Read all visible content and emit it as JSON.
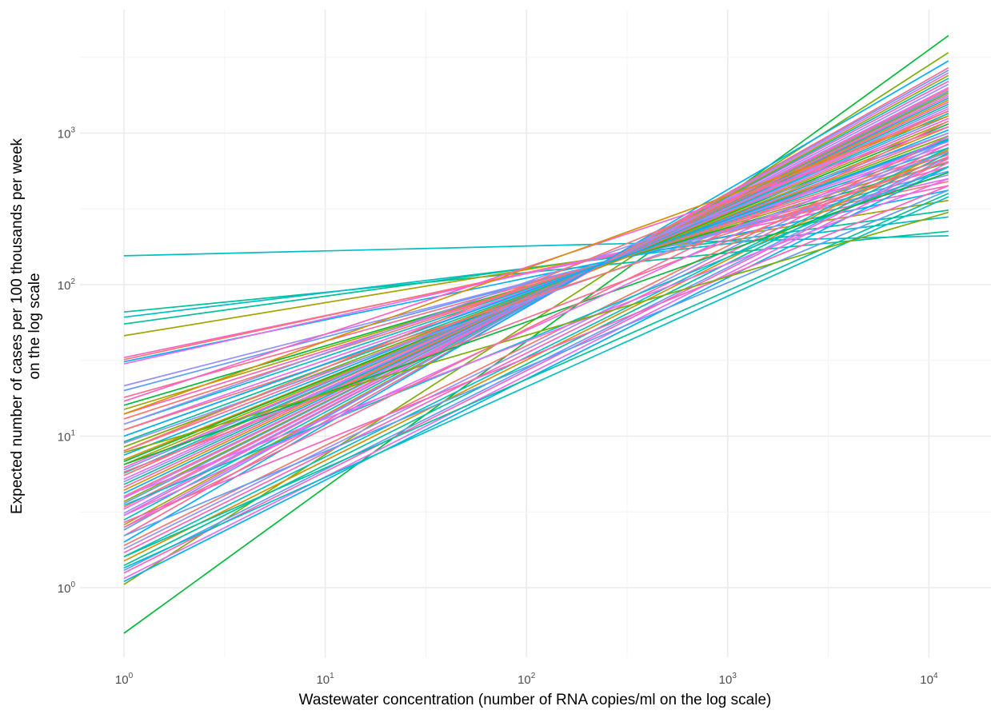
{
  "chart_data": {
    "type": "line",
    "title": "",
    "xlabel": "Wastewater concentration (number of RNA copies/ml on the log scale)",
    "ylabel_lines": [
      "Expected number of cases per 100 thousands per week",
      "on the log scale"
    ],
    "x_scale": "log10",
    "y_scale": "log10",
    "xlim": [
      1,
      12500
    ],
    "ylim": [
      0.35,
      5500
    ],
    "grid": true,
    "legend": "none",
    "x_ticks": [
      {
        "base": "10",
        "exp": "0",
        "value": 1
      },
      {
        "base": "10",
        "exp": "1",
        "value": 10
      },
      {
        "base": "10",
        "exp": "2",
        "value": 100
      },
      {
        "base": "10",
        "exp": "3",
        "value": 1000
      },
      {
        "base": "10",
        "exp": "4",
        "value": 10000
      }
    ],
    "y_ticks": [
      {
        "base": "10",
        "exp": "0",
        "value": 1
      },
      {
        "base": "10",
        "exp": "1",
        "value": 10
      },
      {
        "base": "10",
        "exp": "2",
        "value": 100
      },
      {
        "base": "10",
        "exp": "3",
        "value": 1000
      }
    ],
    "series": [
      {
        "color": "#00BA38",
        "x": [
          1,
          12500
        ],
        "y": [
          0.5,
          4400
        ]
      },
      {
        "color": "#7CAE00",
        "x": [
          1,
          12500
        ],
        "y": [
          1.05,
          3400
        ]
      },
      {
        "color": "#00BFC4",
        "x": [
          1,
          12500
        ],
        "y": [
          155,
          210
        ]
      },
      {
        "color": "#00C19A",
        "x": [
          1,
          12500
        ],
        "y": [
          66,
          225
        ]
      },
      {
        "color": "#00BFC4",
        "x": [
          1,
          12500
        ],
        "y": [
          61,
          280
        ]
      },
      {
        "color": "#00C19A",
        "x": [
          1,
          12500
        ],
        "y": [
          55,
          310
        ]
      },
      {
        "color": "#A3A500",
        "x": [
          1,
          12500
        ],
        "y": [
          46,
          360
        ]
      },
      {
        "color": "#00B0F6",
        "x": [
          1,
          12500
        ],
        "y": [
          31,
          420
        ]
      },
      {
        "color": "#FF61C3",
        "x": [
          1,
          12500
        ],
        "y": [
          33,
          450
        ]
      },
      {
        "color": "#F8766D",
        "x": [
          1,
          12500
        ],
        "y": [
          32,
          480
        ]
      },
      {
        "color": "#E76BF3",
        "x": [
          1,
          12500
        ],
        "y": [
          30,
          500
        ]
      },
      {
        "color": "#9590FF",
        "x": [
          1,
          12500
        ],
        "y": [
          21.5,
          530
        ]
      },
      {
        "color": "#619CFF",
        "x": [
          1,
          12500
        ],
        "y": [
          20,
          560
        ]
      },
      {
        "color": "#FF6C91",
        "x": [
          1,
          12500
        ],
        "y": [
          18,
          600
        ]
      },
      {
        "color": "#00BA38",
        "x": [
          1,
          12500
        ],
        "y": [
          16,
          640
        ]
      },
      {
        "color": "#A3A500",
        "x": [
          1,
          12500
        ],
        "y": [
          15,
          680
        ]
      },
      {
        "color": "#FF62BC",
        "x": [
          1,
          12500
        ],
        "y": [
          14,
          720
        ]
      },
      {
        "color": "#F8766D",
        "x": [
          1,
          12500
        ],
        "y": [
          13,
          760
        ]
      },
      {
        "color": "#00BFC4",
        "x": [
          1,
          12500
        ],
        "y": [
          12,
          800
        ]
      },
      {
        "color": "#E76BF3",
        "x": [
          1,
          12500
        ],
        "y": [
          11,
          840
        ]
      },
      {
        "color": "#9590FF",
        "x": [
          1,
          12500
        ],
        "y": [
          10,
          880
        ]
      },
      {
        "color": "#00C19A",
        "x": [
          1,
          12500
        ],
        "y": [
          9.2,
          920
        ]
      },
      {
        "color": "#7CAE00",
        "x": [
          1,
          12500
        ],
        "y": [
          8.5,
          960
        ]
      },
      {
        "color": "#FF6C91",
        "x": [
          1,
          12500
        ],
        "y": [
          8,
          1000
        ]
      },
      {
        "color": "#00B0F6",
        "x": [
          1,
          12500
        ],
        "y": [
          7.5,
          1050
        ]
      },
      {
        "color": "#D89000",
        "x": [
          1,
          12500
        ],
        "y": [
          7,
          1100
        ]
      },
      {
        "color": "#00BA38",
        "x": [
          1,
          12500
        ],
        "y": [
          6.8,
          1150
        ]
      },
      {
        "color": "#A3A500",
        "x": [
          1,
          12500
        ],
        "y": [
          6.5,
          1200
        ]
      },
      {
        "color": "#FF61C3",
        "x": [
          1,
          12500
        ],
        "y": [
          6.2,
          1250
        ]
      },
      {
        "color": "#619CFF",
        "x": [
          1,
          12500
        ],
        "y": [
          6,
          1300
        ]
      },
      {
        "color": "#00BFC4",
        "x": [
          1,
          12500
        ],
        "y": [
          5.7,
          1350
        ]
      },
      {
        "color": "#F8766D",
        "x": [
          1,
          12500
        ],
        "y": [
          5.5,
          1400
        ]
      },
      {
        "color": "#E76BF3",
        "x": [
          1,
          12500
        ],
        "y": [
          5.2,
          1450
        ]
      },
      {
        "color": "#9590FF",
        "x": [
          1,
          12500
        ],
        "y": [
          5,
          1500
        ]
      },
      {
        "color": "#00C19A",
        "x": [
          1,
          12500
        ],
        "y": [
          4.8,
          1550
        ]
      },
      {
        "color": "#FF62BC",
        "x": [
          1,
          12500
        ],
        "y": [
          4.6,
          1600
        ]
      },
      {
        "color": "#D89000",
        "x": [
          1,
          12500
        ],
        "y": [
          4.4,
          1650
        ]
      },
      {
        "color": "#00B0F6",
        "x": [
          1,
          12500
        ],
        "y": [
          4.2,
          1700
        ]
      },
      {
        "color": "#FF6C91",
        "x": [
          1,
          12500
        ],
        "y": [
          4,
          1750
        ]
      },
      {
        "color": "#C77CFF",
        "x": [
          1,
          12500
        ],
        "y": [
          3.9,
          1800
        ]
      },
      {
        "color": "#7CAE00",
        "x": [
          1,
          12500
        ],
        "y": [
          3.7,
          1850
        ]
      },
      {
        "color": "#619CFF",
        "x": [
          1,
          12500
        ],
        "y": [
          3.6,
          1900
        ]
      },
      {
        "color": "#F8766D",
        "x": [
          1,
          12500
        ],
        "y": [
          3.4,
          1950
        ]
      },
      {
        "color": "#E76BF3",
        "x": [
          1,
          12500
        ],
        "y": [
          3.3,
          2000
        ]
      },
      {
        "color": "#9590FF",
        "x": [
          1,
          12500
        ],
        "y": [
          3.1,
          2100
        ]
      },
      {
        "color": "#FF61C3",
        "x": [
          1,
          12500
        ],
        "y": [
          3,
          2200
        ]
      },
      {
        "color": "#00BFC4",
        "x": [
          1,
          12500
        ],
        "y": [
          2.8,
          2300
        ]
      },
      {
        "color": "#A3A500",
        "x": [
          1,
          12500
        ],
        "y": [
          2.6,
          2400
        ]
      },
      {
        "color": "#E76BF3",
        "x": [
          1,
          12500
        ],
        "y": [
          2.5,
          2500
        ]
      },
      {
        "color": "#619CFF",
        "x": [
          1,
          12500
        ],
        "y": [
          2.4,
          2600
        ]
      },
      {
        "color": "#FF6C91",
        "x": [
          1,
          12500
        ],
        "y": [
          2.2,
          2700
        ]
      },
      {
        "color": "#00B0F6",
        "x": [
          1,
          12500
        ],
        "y": [
          2,
          3000
        ]
      },
      {
        "color": "#F8766D",
        "x": [
          1,
          12500
        ],
        "y": [
          1.9,
          950
        ]
      },
      {
        "color": "#9590FF",
        "x": [
          1,
          12500
        ],
        "y": [
          1.8,
          900
        ]
      },
      {
        "color": "#FF62BC",
        "x": [
          1,
          12500
        ],
        "y": [
          1.7,
          850
        ]
      },
      {
        "color": "#00BFC4",
        "x": [
          1,
          12500
        ],
        "y": [
          1.6,
          800
        ]
      },
      {
        "color": "#D89000",
        "x": [
          1,
          12500
        ],
        "y": [
          1.5,
          780
        ]
      },
      {
        "color": "#00C19A",
        "x": [
          1,
          12500
        ],
        "y": [
          1.4,
          740
        ]
      },
      {
        "color": "#619CFF",
        "x": [
          1,
          12500
        ],
        "y": [
          1.3,
          700
        ]
      },
      {
        "color": "#FF61C3",
        "x": [
          1,
          12500
        ],
        "y": [
          1.25,
          680
        ]
      },
      {
        "color": "#E76BF3",
        "x": [
          1,
          12500
        ],
        "y": [
          1.15,
          640
        ]
      },
      {
        "color": "#00B0F6",
        "x": [
          1,
          12500
        ],
        "y": [
          1.1,
          600
        ]
      },
      {
        "color": "#00BFC4",
        "x": [
          1,
          12500
        ],
        "y": [
          3.5,
          600
        ]
      },
      {
        "color": "#FF6C91",
        "x": [
          1,
          12500
        ],
        "y": [
          5.8,
          700
        ]
      },
      {
        "color": "#9590FF",
        "x": [
          1,
          12500
        ],
        "y": [
          9,
          750
        ]
      },
      {
        "color": "#F8766D",
        "x": [
          1,
          12500
        ],
        "y": [
          11,
          650
        ]
      },
      {
        "color": "#00BA38",
        "x": [
          1,
          12500
        ],
        "y": [
          6.5,
          550
        ]
      },
      {
        "color": "#E76BF3",
        "x": [
          1,
          12500
        ],
        "y": [
          4,
          500
        ]
      },
      {
        "color": "#FF62BC",
        "x": [
          1,
          12500
        ],
        "y": [
          2.7,
          450
        ]
      },
      {
        "color": "#619CFF",
        "x": [
          1,
          12500
        ],
        "y": [
          2.2,
          420
        ]
      },
      {
        "color": "#00C19A",
        "x": [
          1,
          12500
        ],
        "y": [
          1.6,
          400
        ]
      },
      {
        "color": "#00BFC4",
        "x": [
          1,
          12500
        ],
        "y": [
          1.35,
          380
        ]
      },
      {
        "color": "#7CAE00",
        "x": [
          1,
          12500
        ],
        "y": [
          7.8,
          300
        ]
      },
      {
        "color": "#FF61C3",
        "x": [
          1,
          12500
        ],
        "y": [
          17,
          1100
        ]
      },
      {
        "color": "#D89000",
        "x": [
          1,
          12500
        ],
        "y": [
          14,
          1300
        ]
      },
      {
        "color": "#9590FF",
        "x": [
          1,
          12500
        ],
        "y": [
          12,
          1000
        ]
      },
      {
        "color": "#00B0F6",
        "x": [
          1,
          12500
        ],
        "y": [
          10,
          900
        ]
      },
      {
        "color": "#F8766D",
        "x": [
          1,
          12500
        ],
        "y": [
          8,
          1400
        ]
      },
      {
        "color": "#E76BF3",
        "x": [
          1,
          12500
        ],
        "y": [
          3,
          950
        ]
      },
      {
        "color": "#FF6C91",
        "x": [
          1,
          12500
        ],
        "y": [
          2.5,
          1200
        ]
      }
    ]
  }
}
